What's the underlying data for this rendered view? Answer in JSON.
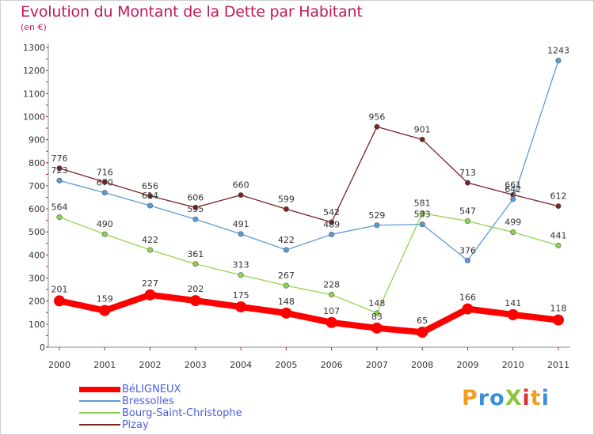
{
  "chart_data": {
    "type": "line",
    "title": "Evolution du Montant de la Dette par Habitant",
    "unit": "(en €)",
    "x": [
      "2000",
      "2001",
      "2002",
      "2003",
      "2004",
      "2005",
      "2006",
      "2007",
      "2008",
      "2009",
      "2010",
      "2011"
    ],
    "ylim": [
      0,
      1300
    ],
    "yticks": [
      0,
      100,
      200,
      300,
      400,
      500,
      600,
      700,
      800,
      900,
      1000,
      1100,
      1200,
      1300
    ],
    "grid": false,
    "legend_position": "bottom-left",
    "series": [
      {
        "name": "BéLIGNEUX",
        "color": "#ff0000",
        "values": [
          201,
          159,
          227,
          202,
          175,
          148,
          107,
          83,
          65,
          166,
          141,
          118
        ]
      },
      {
        "name": "Bressolles",
        "color": "#5b9bd5",
        "values": [
          723,
          670,
          614,
          555,
          491,
          422,
          489,
          529,
          533,
          376,
          642,
          1243
        ]
      },
      {
        "name": "Bourg-Saint-Christophe",
        "color": "#8fd44f",
        "values": [
          564,
          490,
          422,
          361,
          313,
          267,
          228,
          148,
          581,
          547,
          499,
          441
        ]
      },
      {
        "name": "Pizay",
        "color": "#7a2424",
        "values": [
          776,
          716,
          656,
          606,
          660,
          599,
          542,
          956,
          901,
          713,
          661,
          612
        ]
      }
    ]
  },
  "logo": {
    "text": "ProXiti"
  }
}
